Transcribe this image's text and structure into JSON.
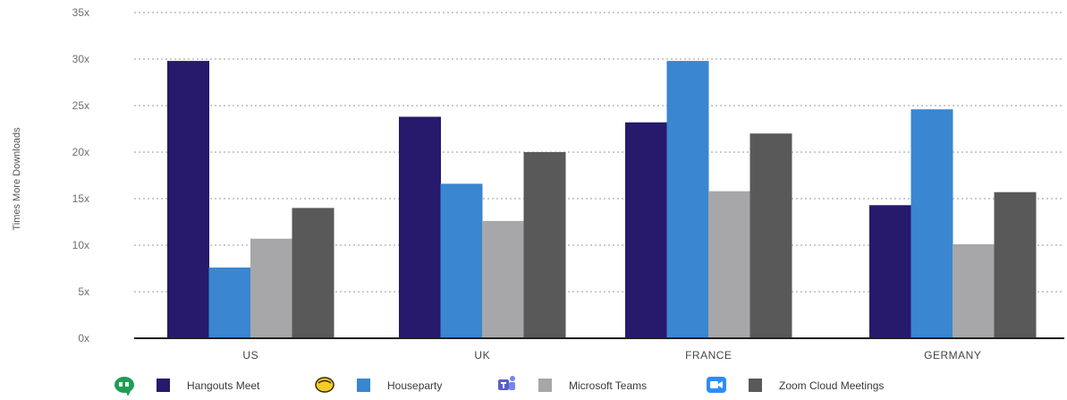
{
  "chart_data": {
    "type": "bar",
    "ylabel": "Times More Downloads",
    "xlabel": "",
    "ylim": [
      0,
      35
    ],
    "yticks": [
      0,
      5,
      10,
      15,
      20,
      25,
      30,
      35
    ],
    "ytick_labels": [
      "0x",
      "5x",
      "10x",
      "15x",
      "20x",
      "25x",
      "30x",
      "35x"
    ],
    "grid": true,
    "legend_position": "bottom",
    "categories": [
      "US",
      "UK",
      "FRANCE",
      "GERMANY"
    ],
    "series": [
      {
        "name": "Hangouts Meet",
        "color": "#27196b",
        "icon": "hangouts-meet-icon",
        "values": [
          29.8,
          23.8,
          23.2,
          14.3
        ]
      },
      {
        "name": "Houseparty",
        "color": "#3a86d1",
        "icon": "houseparty-icon",
        "values": [
          7.6,
          16.6,
          29.8,
          24.6
        ]
      },
      {
        "name": "Microsoft Teams",
        "color": "#a7a7a9",
        "icon": "microsoft-teams-icon",
        "values": [
          10.7,
          12.6,
          15.8,
          10.1
        ]
      },
      {
        "name": "Zoom Cloud Meetings",
        "color": "#595959",
        "icon": "zoom-icon",
        "values": [
          14.0,
          20.0,
          22.0,
          15.7
        ]
      }
    ]
  }
}
